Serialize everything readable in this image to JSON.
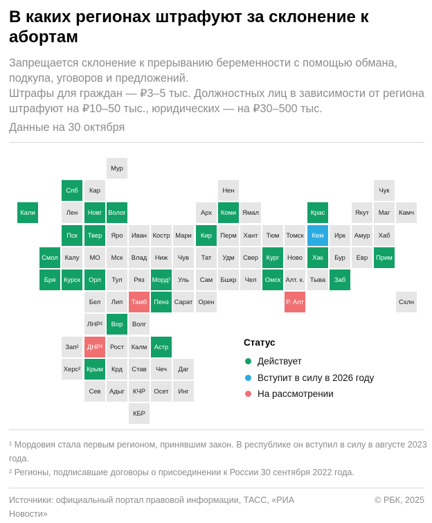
{
  "header": {
    "title": "В каких регионах штрафуют за склонение к абортам",
    "subtitle_line1": "Запрещается склонение к прерыванию беременности с помощью обмана, подкупа, уговоров и предложений.",
    "subtitle_line2": "Штрафы для граждан — ₽3–5 тыс. Должностных лиц в зависимости от региона штрафуют на ₽10–50 тыс., юридических — на ₽30–500 тыс.",
    "date_note": "Данные на 30 октября"
  },
  "legend": {
    "title": "Статус",
    "items": [
      {
        "label": "Действует",
        "color": "#13a066"
      },
      {
        "label": "Вступит в силу в 2026 году",
        "color": "#2aace2"
      },
      {
        "label": "На рассмотрении",
        "color": "#f07072"
      }
    ]
  },
  "chart_data": {
    "type": "tile-grid map",
    "status_colors": {
      "active": "#13a066",
      "planned": "#2aace2",
      "review": "#f07072",
      "none": "#e6e6e6"
    },
    "tiles": [
      {
        "label": "Мур",
        "col": 4,
        "row": 0,
        "status": "none"
      },
      {
        "label": "Спб",
        "col": 2,
        "row": 1,
        "status": "active"
      },
      {
        "label": "Кар",
        "col": 3,
        "row": 1,
        "status": "none"
      },
      {
        "label": "Нен",
        "col": 9,
        "row": 1,
        "status": "none"
      },
      {
        "label": "Чук",
        "col": 16,
        "row": 1,
        "status": "none"
      },
      {
        "label": "Кали",
        "col": 0,
        "row": 2,
        "status": "active"
      },
      {
        "label": "Лен",
        "col": 2,
        "row": 2,
        "status": "none"
      },
      {
        "label": "Новг",
        "col": 3,
        "row": 2,
        "status": "active"
      },
      {
        "label": "Волог",
        "col": 4,
        "row": 2,
        "status": "active"
      },
      {
        "label": "Арх",
        "col": 8,
        "row": 2,
        "status": "none"
      },
      {
        "label": "Коми",
        "col": 9,
        "row": 2,
        "status": "active"
      },
      {
        "label": "Ямал",
        "col": 10,
        "row": 2,
        "status": "none"
      },
      {
        "label": "Крас",
        "col": 13,
        "row": 2,
        "status": "active"
      },
      {
        "label": "Якут",
        "col": 15,
        "row": 2,
        "status": "none"
      },
      {
        "label": "Маг",
        "col": 16,
        "row": 2,
        "status": "none"
      },
      {
        "label": "Камч",
        "col": 17,
        "row": 2,
        "status": "none"
      },
      {
        "label": "Пск",
        "col": 2,
        "row": 3,
        "status": "active"
      },
      {
        "label": "Твер",
        "col": 3,
        "row": 3,
        "status": "active"
      },
      {
        "label": "Яро",
        "col": 4,
        "row": 3,
        "status": "none"
      },
      {
        "label": "Иван",
        "col": 5,
        "row": 3,
        "status": "none"
      },
      {
        "label": "Костр",
        "col": 6,
        "row": 3,
        "status": "none"
      },
      {
        "label": "Мари",
        "col": 7,
        "row": 3,
        "status": "none"
      },
      {
        "label": "Кир",
        "col": 8,
        "row": 3,
        "status": "active"
      },
      {
        "label": "Перм",
        "col": 9,
        "row": 3,
        "status": "none"
      },
      {
        "label": "Хант",
        "col": 10,
        "row": 3,
        "status": "none"
      },
      {
        "label": "Тюм",
        "col": 11,
        "row": 3,
        "status": "none"
      },
      {
        "label": "Томск",
        "col": 12,
        "row": 3,
        "status": "none"
      },
      {
        "label": "Кем",
        "col": 13,
        "row": 3,
        "status": "planned"
      },
      {
        "label": "Ирк",
        "col": 14,
        "row": 3,
        "status": "none"
      },
      {
        "label": "Амур",
        "col": 15,
        "row": 3,
        "status": "none"
      },
      {
        "label": "Хаб",
        "col": 16,
        "row": 3,
        "status": "none"
      },
      {
        "label": "Смол",
        "col": 1,
        "row": 4,
        "status": "active"
      },
      {
        "label": "Калу",
        "col": 2,
        "row": 4,
        "status": "none"
      },
      {
        "label": "МО",
        "col": 3,
        "row": 4,
        "status": "none"
      },
      {
        "label": "Мск",
        "col": 4,
        "row": 4,
        "status": "none"
      },
      {
        "label": "Влад",
        "col": 5,
        "row": 4,
        "status": "none"
      },
      {
        "label": "Ниж",
        "col": 6,
        "row": 4,
        "status": "none"
      },
      {
        "label": "Чув",
        "col": 7,
        "row": 4,
        "status": "none"
      },
      {
        "label": "Тат",
        "col": 8,
        "row": 4,
        "status": "none"
      },
      {
        "label": "Удм",
        "col": 9,
        "row": 4,
        "status": "none"
      },
      {
        "label": "Свер",
        "col": 10,
        "row": 4,
        "status": "none"
      },
      {
        "label": "Кург",
        "col": 11,
        "row": 4,
        "status": "active"
      },
      {
        "label": "Ново",
        "col": 12,
        "row": 4,
        "status": "none"
      },
      {
        "label": "Хак",
        "col": 13,
        "row": 4,
        "status": "active"
      },
      {
        "label": "Бур",
        "col": 14,
        "row": 4,
        "status": "none"
      },
      {
        "label": "Евр",
        "col": 15,
        "row": 4,
        "status": "none"
      },
      {
        "label": "Прим",
        "col": 16,
        "row": 4,
        "status": "active"
      },
      {
        "label": "Бря",
        "col": 1,
        "row": 5,
        "status": "active"
      },
      {
        "label": "Курск",
        "col": 2,
        "row": 5,
        "status": "active"
      },
      {
        "label": "Орл",
        "col": 3,
        "row": 5,
        "status": "active"
      },
      {
        "label": "Тул",
        "col": 4,
        "row": 5,
        "status": "none"
      },
      {
        "label": "Ряз",
        "col": 5,
        "row": 5,
        "status": "none"
      },
      {
        "label": "Морд¹",
        "col": 6,
        "row": 5,
        "status": "active"
      },
      {
        "label": "Уль",
        "col": 7,
        "row": 5,
        "status": "none"
      },
      {
        "label": "Сам",
        "col": 8,
        "row": 5,
        "status": "none"
      },
      {
        "label": "Бшкр",
        "col": 9,
        "row": 5,
        "status": "none"
      },
      {
        "label": "Чел",
        "col": 10,
        "row": 5,
        "status": "none"
      },
      {
        "label": "Омск",
        "col": 11,
        "row": 5,
        "status": "active"
      },
      {
        "label": "Алт. к.",
        "col": 12,
        "row": 5,
        "status": "none"
      },
      {
        "label": "Тыва",
        "col": 13,
        "row": 5,
        "status": "none"
      },
      {
        "label": "Заб",
        "col": 14,
        "row": 5,
        "status": "active"
      },
      {
        "label": "Бел",
        "col": 3,
        "row": 6,
        "status": "none"
      },
      {
        "label": "Лип",
        "col": 4,
        "row": 6,
        "status": "none"
      },
      {
        "label": "Тамб",
        "col": 5,
        "row": 6,
        "status": "review"
      },
      {
        "label": "Пенз",
        "col": 6,
        "row": 6,
        "status": "active"
      },
      {
        "label": "Сарат",
        "col": 7,
        "row": 6,
        "status": "none"
      },
      {
        "label": "Орен",
        "col": 8,
        "row": 6,
        "status": "none"
      },
      {
        "label": "Р. Алт",
        "col": 12,
        "row": 6,
        "status": "review"
      },
      {
        "label": "Схлн",
        "col": 17,
        "row": 6,
        "status": "none"
      },
      {
        "label": "ЛНР²",
        "col": 3,
        "row": 7,
        "status": "none"
      },
      {
        "label": "Вор",
        "col": 4,
        "row": 7,
        "status": "active"
      },
      {
        "label": "Волг",
        "col": 5,
        "row": 7,
        "status": "none"
      },
      {
        "label": "Зап²",
        "col": 2,
        "row": 8,
        "status": "none"
      },
      {
        "label": "ДНР²",
        "col": 3,
        "row": 8,
        "status": "review"
      },
      {
        "label": "Рост",
        "col": 4,
        "row": 8,
        "status": "none"
      },
      {
        "label": "Калм",
        "col": 5,
        "row": 8,
        "status": "none"
      },
      {
        "label": "Астр",
        "col": 6,
        "row": 8,
        "status": "active"
      },
      {
        "label": "Херс²",
        "col": 2,
        "row": 9,
        "status": "none"
      },
      {
        "label": "Крым",
        "col": 3,
        "row": 9,
        "status": "active"
      },
      {
        "label": "Крд",
        "col": 4,
        "row": 9,
        "status": "none"
      },
      {
        "label": "Став",
        "col": 5,
        "row": 9,
        "status": "none"
      },
      {
        "label": "Чеч",
        "col": 6,
        "row": 9,
        "status": "none"
      },
      {
        "label": "Даг",
        "col": 7,
        "row": 9,
        "status": "none"
      },
      {
        "label": "Сев",
        "col": 3,
        "row": 10,
        "status": "none"
      },
      {
        "label": "Адыг",
        "col": 4,
        "row": 10,
        "status": "none"
      },
      {
        "label": "КЧР",
        "col": 5,
        "row": 10,
        "status": "none"
      },
      {
        "label": "Осет",
        "col": 6,
        "row": 10,
        "status": "none"
      },
      {
        "label": "Инг",
        "col": 7,
        "row": 10,
        "status": "none"
      },
      {
        "label": "КБР",
        "col": 5,
        "row": 11,
        "status": "none"
      }
    ]
  },
  "notes": {
    "note1": "¹ Мордовия стала первым регионом, принявшим закон. В республике он вступил в силу в августе 2023 года.",
    "note2": "² Регионы, подписавшие договоры о присоединении к России 30 сентября 2022 года."
  },
  "footer": {
    "sources": "Источники: официальный портал правовой информации, ТАСС, «РИА Новости»",
    "copyright": "© РБК, 2025"
  }
}
